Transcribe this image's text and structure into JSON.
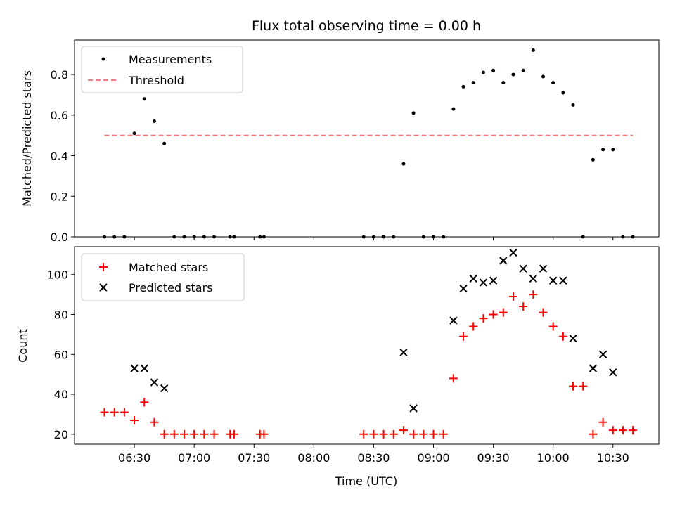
{
  "title": "Flux total observing time = 0.00 h",
  "colors": {
    "measurement": "#000000",
    "threshold": "#f08080",
    "matched": "#ff0000",
    "predicted": "#000000"
  },
  "chart_data": [
    {
      "type": "scatter",
      "ylabel": "Matched/Predicted stars",
      "ylim": [
        0,
        0.97
      ],
      "yticks": [
        0.0,
        0.2,
        0.4,
        0.6,
        0.8
      ],
      "ytick_labels": [
        "0.0",
        "0.2",
        "0.4",
        "0.6",
        "0.8"
      ],
      "grid": false,
      "legend": {
        "position": "top-left",
        "entries": [
          "Measurements",
          "Threshold"
        ]
      },
      "series": [
        {
          "name": "Measurements",
          "x": [
            "06:15",
            "06:20",
            "06:25",
            "06:30",
            "06:35",
            "06:40",
            "06:45",
            "06:50",
            "06:55",
            "07:00",
            "07:05",
            "07:10",
            "07:18",
            "07:20",
            "07:33",
            "07:35",
            "08:25",
            "08:30",
            "08:35",
            "08:40",
            "08:45",
            "08:50",
            "08:55",
            "09:00",
            "09:05",
            "09:10",
            "09:15",
            "09:20",
            "09:25",
            "09:30",
            "09:35",
            "09:40",
            "09:45",
            "09:50",
            "09:55",
            "10:00",
            "10:05",
            "10:10",
            "10:15",
            "10:20",
            "10:25",
            "10:30",
            "10:35",
            "10:40"
          ],
          "y": [
            0,
            0,
            0,
            0.51,
            0.68,
            0.57,
            0.46,
            0,
            0,
            0,
            0,
            0,
            0,
            0,
            0,
            0,
            0,
            0,
            0,
            0,
            0.36,
            0.61,
            0,
            0,
            0,
            0.63,
            0.74,
            0.76,
            0.81,
            0.82,
            0.76,
            0.8,
            0.82,
            0.92,
            0.79,
            0.76,
            0.71,
            0.65,
            0,
            0.38,
            0.43,
            0.43,
            0,
            0
          ]
        },
        {
          "name": "Threshold",
          "x": [
            "06:15",
            "10:40"
          ],
          "y": [
            0.5,
            0.5
          ]
        }
      ]
    },
    {
      "type": "scatter",
      "xlabel": "Time (UTC)",
      "ylabel": "Count",
      "ylim": [
        15,
        114
      ],
      "yticks": [
        20,
        40,
        60,
        80,
        100
      ],
      "ytick_labels": [
        "20",
        "40",
        "60",
        "80",
        "100"
      ],
      "xlim": [
        "06:00",
        "10:53"
      ],
      "xticks": [
        "06:30",
        "07:00",
        "07:30",
        "08:00",
        "08:30",
        "09:00",
        "09:30",
        "10:00",
        "10:30"
      ],
      "grid": false,
      "legend": {
        "position": "top-left",
        "entries": [
          "Matched stars",
          "Predicted stars"
        ]
      },
      "series": [
        {
          "name": "Matched stars",
          "x": [
            "06:15",
            "06:20",
            "06:25",
            "06:30",
            "06:35",
            "06:40",
            "06:45",
            "06:50",
            "06:55",
            "07:00",
            "07:05",
            "07:10",
            "07:18",
            "07:20",
            "07:33",
            "07:35",
            "08:25",
            "08:30",
            "08:35",
            "08:40",
            "08:45",
            "08:50",
            "08:55",
            "09:00",
            "09:05",
            "09:10",
            "09:15",
            "09:20",
            "09:25",
            "09:30",
            "09:35",
            "09:40",
            "09:45",
            "09:50",
            "09:55",
            "10:00",
            "10:05",
            "10:10",
            "10:15",
            "10:20",
            "10:25",
            "10:30",
            "10:35",
            "10:40"
          ],
          "y": [
            31,
            31,
            31,
            27,
            36,
            26,
            20,
            20,
            20,
            20,
            20,
            20,
            20,
            20,
            20,
            20,
            20,
            20,
            20,
            20,
            22,
            20,
            20,
            20,
            20,
            48,
            69,
            74,
            78,
            80,
            81,
            89,
            84,
            90,
            81,
            74,
            69,
            44,
            44,
            20,
            26,
            22,
            22,
            22
          ]
        },
        {
          "name": "Predicted stars",
          "x": [
            "06:30",
            "06:35",
            "06:40",
            "06:45",
            "08:45",
            "08:50",
            "09:10",
            "09:15",
            "09:20",
            "09:25",
            "09:30",
            "09:35",
            "09:40",
            "09:45",
            "09:50",
            "09:55",
            "10:00",
            "10:05",
            "10:10",
            "10:20",
            "10:25",
            "10:30"
          ],
          "y": [
            53,
            53,
            46,
            43,
            61,
            33,
            77,
            93,
            98,
            96,
            97,
            107,
            111,
            103,
            98,
            103,
            97,
            97,
            68,
            53,
            60,
            51
          ]
        }
      ]
    }
  ]
}
